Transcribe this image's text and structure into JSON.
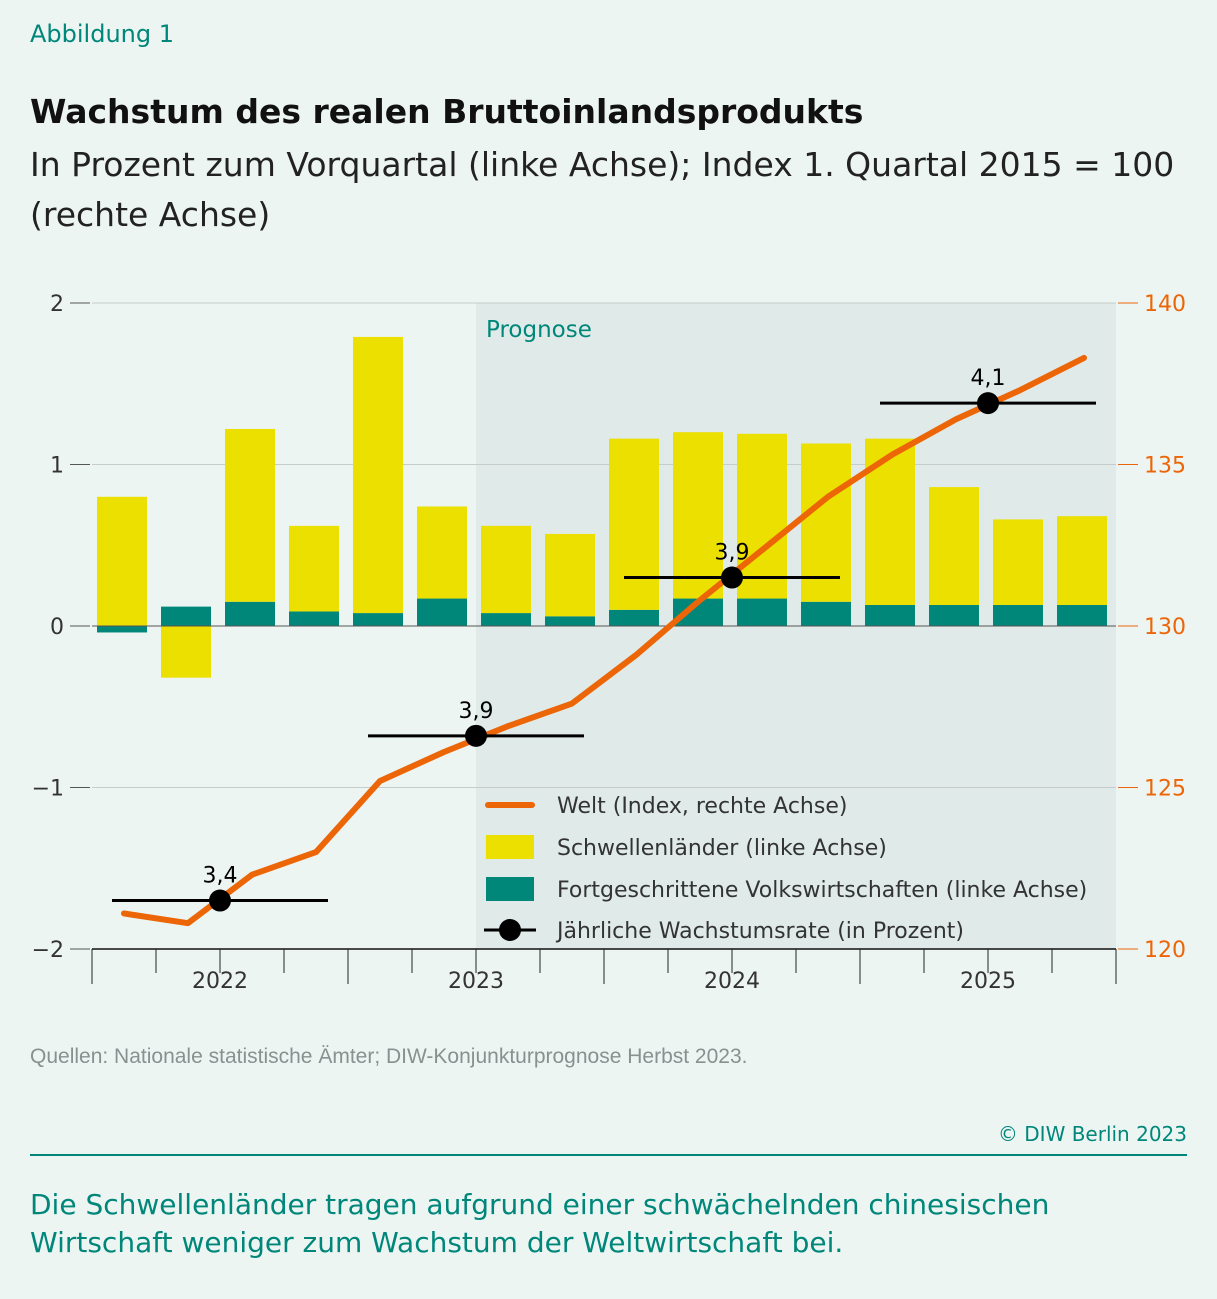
{
  "figure_label": "Abbildung 1",
  "title": "Wachstum des realen Bruttoinlandsprodukts",
  "subtitle": "In Prozent zum Vorquartal (linke Achse); Index 1. Quartal 2015 = 100 (rechte Achse)",
  "source": "Quellen: Nationale statistische Ämter; DIW-Konjunkturprognose Herbst 2023.",
  "copyright": "© DIW Berlin 2023",
  "caption": "Die Schwellenländer tragen aufgrund einer schwächelnden chinesischen Wirtschaft weniger zum Wachstum der Weltwirtschaft bei.",
  "colors": {
    "emerging": "#ebe000",
    "advanced": "#00877a",
    "world": "#ec6608",
    "annual": "#000000",
    "forecast_shade": "#dfeae9",
    "accent": "#00877a"
  },
  "chart_data": {
    "type": "bar+line",
    "quarters": [
      "2022Q1",
      "2022Q2",
      "2022Q3",
      "2022Q4",
      "2023Q1",
      "2023Q2",
      "2023Q3",
      "2023Q4",
      "2024Q1",
      "2024Q2",
      "2024Q3",
      "2024Q4",
      "2025Q1",
      "2025Q2",
      "2025Q3",
      "2025Q4"
    ],
    "x_tick_labels": [
      "2022",
      "2023",
      "2024",
      "2025"
    ],
    "left_axis": {
      "ylim": [
        -2,
        2
      ],
      "ticks": [
        2,
        1,
        0,
        -1,
        -2
      ],
      "tick_labels": [
        "2",
        "1",
        "0",
        "−1",
        "−2"
      ]
    },
    "right_axis": {
      "ylim": [
        120,
        140
      ],
      "ticks": [
        140,
        135,
        130,
        125,
        120
      ],
      "tick_labels": [
        "140",
        "135",
        "130",
        "125",
        "120"
      ]
    },
    "forecast_label": "Prognose",
    "forecast_start": "2023Q3",
    "series": [
      {
        "name": "Schwellenländer (linke Achse)",
        "kind": "stacked-bar",
        "axis": "left",
        "values": [
          0.8,
          -0.32,
          1.07,
          0.53,
          1.71,
          0.57,
          0.54,
          0.51,
          1.06,
          1.03,
          1.02,
          0.98,
          1.03,
          0.73,
          0.53,
          0.55
        ]
      },
      {
        "name": "Fortgeschrittene Volkswirtschaften (linke Achse)",
        "kind": "stacked-bar",
        "axis": "left",
        "values": [
          -0.04,
          0.12,
          0.15,
          0.09,
          0.08,
          0.17,
          0.08,
          0.06,
          0.1,
          0.17,
          0.17,
          0.15,
          0.13,
          0.13,
          0.13,
          0.13
        ]
      },
      {
        "name": "Welt (Index, rechte Achse)",
        "kind": "line",
        "axis": "right",
        "values": [
          121.1,
          120.8,
          122.3,
          123.0,
          125.2,
          126.1,
          126.9,
          127.6,
          129.1,
          130.8,
          132.4,
          134.0,
          135.3,
          136.4,
          137.3,
          138.3
        ]
      },
      {
        "name": "Jährliche Wachstumsrate (in Prozent)",
        "kind": "annual-marker",
        "years": [
          "2022",
          "2023",
          "2024",
          "2025"
        ],
        "labels": [
          "3,4",
          "3,9",
          "3,9",
          "4,1"
        ],
        "values": [
          3.4,
          3.9,
          3.9,
          4.1
        ],
        "position_index": [
          121.5,
          126.6,
          131.5,
          136.9
        ]
      }
    ],
    "legend": [
      "Welt (Index, rechte Achse)",
      "Schwellenländer (linke Achse)",
      "Fortgeschrittene Volkswirtschaften (linke Achse)",
      "Jährliche Wachstumsrate (in Prozent)"
    ],
    "legend_position": "bottom-right inside",
    "grid": "horizontal at left-axis ticks"
  }
}
